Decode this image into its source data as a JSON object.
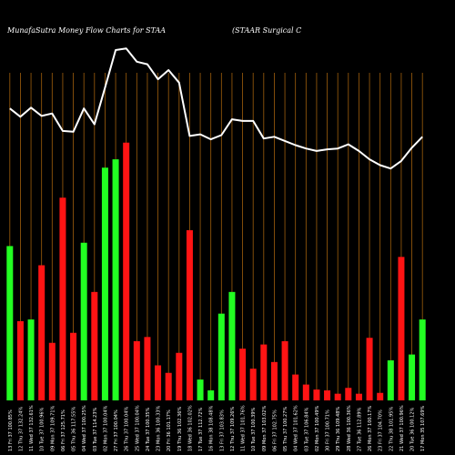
{
  "chart_data": {
    "type": "bar",
    "title": "MunafaSutra  Money Flow  Charts for STAA",
    "subtitle": "(STAAR Surgical C",
    "xlabel": "",
    "ylabel": "",
    "grid": true,
    "colors": {
      "background": "#000000",
      "positive": "#22ff22",
      "negative": "#ff1414",
      "grid": "#a0600c",
      "line": "#ffffff"
    },
    "categories": [
      "13 Fri 37 100.85%",
      "12 Thu 37 132.24%",
      "11 Wed 37 132.61%",
      "10 Tue 37 100.96%",
      "09 Mon 37 109.71%",
      "06 Fri 37 125.71%",
      "05 Thu 36 117.55%",
      "04 Wed 37 100.25%",
      "03 Tue 37 114.23%",
      "02 Mon 37 100.04%",
      "27 Fri 37 100.04%",
      "26 Thu 37 100.04%",
      "25 Wed 37 100.04%",
      "24 Tue 37 100.35%",
      "23 Mon 36 100.33%",
      "20 Fri 36 101.17%",
      "19 Thu 36 102.36%",
      "18 Wed 36 102.02%",
      "17 Tue 37 112.72%",
      "16 Mon 38 108.48%",
      "13 Fri 37 103.83%",
      "12 Thu 37 109.26%",
      "11 Wed 37 101.76%",
      "10 Tue 37 100.39%",
      "09 Mon 37 103.02%",
      "06 Fri 37 102.75%",
      "05 Thu 37 100.27%",
      "04 Wed 37 101.62%",
      "03 Tue 37 106.84%",
      "02 Mon 37 100.49%",
      "30 Fri 37 100.71%",
      "29 Thu 36 109.48%",
      "28 Wed 36 100.36%",
      "27 Tue 36 112.89%",
      "26 Mon 37 100.17%",
      "23 Fri 37 104.70%",
      "22 Thu 38 101.95%",
      "21 Wed 37 100.96%",
      "20 Tue 36 100.12%",
      "17 Mon 35 107.69%"
    ],
    "series": [
      {
        "values": [
          185,
          95,
          97,
          162,
          69,
          243,
          81,
          189,
          130,
          279,
          289,
          309,
          71,
          76,
          42,
          33,
          57,
          204,
          25,
          12,
          104,
          130,
          62,
          38,
          67,
          46,
          71,
          31,
          19,
          13,
          12,
          8,
          15,
          8,
          75,
          9,
          48,
          172,
          55,
          97
        ],
        "direction": [
          "up",
          "down",
          "up",
          "down",
          "down",
          "down",
          "down",
          "up",
          "down",
          "up",
          "up",
          "down",
          "down",
          "down",
          "down",
          "down",
          "down",
          "down",
          "up",
          "up",
          "up",
          "up",
          "down",
          "down",
          "down",
          "down",
          "down",
          "down",
          "down",
          "down",
          "down",
          "down",
          "down",
          "down",
          "down",
          "down",
          "up",
          "down",
          "up",
          "up"
        ]
      },
      {
        "name": "",
        "values": [
          350,
          340,
          351,
          341,
          344,
          323,
          322,
          350,
          331,
          375,
          420,
          422,
          406,
          403,
          385,
          396,
          381,
          317,
          319,
          313,
          318,
          337,
          335,
          335,
          314,
          316,
          311,
          306,
          302,
          299,
          301,
          302,
          307,
          299,
          289,
          282,
          278,
          287,
          303,
          316
        ],
        "type": "line"
      }
    ],
    "ylim": [
      0,
      480
    ]
  }
}
